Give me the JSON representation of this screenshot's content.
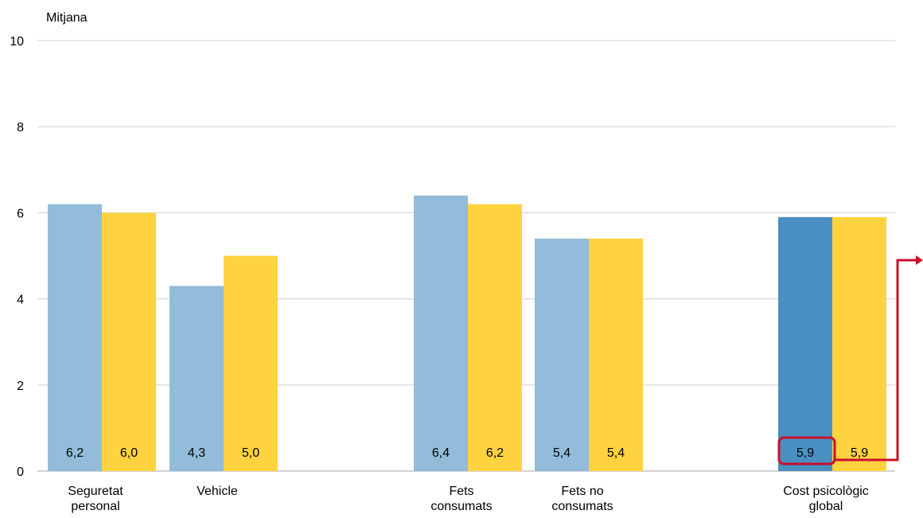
{
  "chart_data": {
    "type": "bar",
    "ylabel": "Mitjana",
    "ylim": [
      0,
      10
    ],
    "yticks": [
      0,
      2,
      4,
      6,
      8,
      10
    ],
    "grid": true,
    "legend": "none",
    "groups": [
      {
        "label_lines": [
          "Seguretat",
          "personal"
        ],
        "values": [
          6.2,
          6.0
        ],
        "labels": [
          "6,2",
          "6,0"
        ]
      },
      {
        "label_lines": [
          "Vehicle"
        ],
        "values": [
          4.3,
          5.0
        ],
        "labels": [
          "4,3",
          "5,0"
        ]
      },
      {
        "label_lines": [
          "Fets",
          "consumats"
        ],
        "values": [
          6.4,
          6.2
        ],
        "labels": [
          "6,4",
          "6,2"
        ]
      },
      {
        "label_lines": [
          "Fets no",
          "consumats"
        ],
        "values": [
          5.4,
          5.4
        ],
        "labels": [
          "5,4",
          "5,4"
        ]
      },
      {
        "label_lines": [
          "Cost psicològic",
          "global"
        ],
        "values": [
          5.9,
          5.9
        ],
        "labels": [
          "5,9",
          "5,9"
        ],
        "highlight_first": true
      }
    ],
    "colors": {
      "series_1": "#92bcd9",
      "series_1_highlight": "#4a8fc2",
      "series_2": "#ffd23f",
      "grid": "#d0d0d0",
      "annotation": "#c8102e"
    }
  }
}
